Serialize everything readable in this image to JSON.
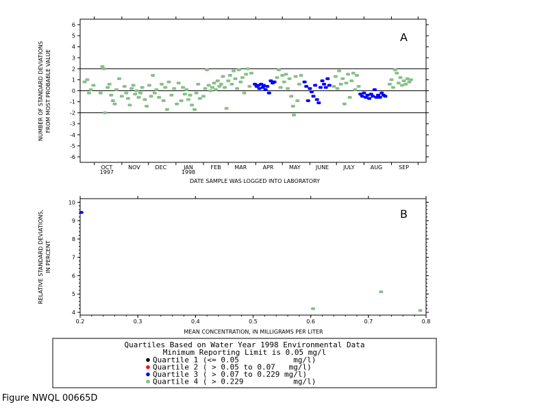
{
  "figure_id": "Figure NWQL 00665D",
  "legend": {
    "title_line1": "Quartiles Based on Water Year 1998 Environmental Data",
    "title_line2": "Minimum Reporting Limit is 0.05 mg/l",
    "items": [
      {
        "label": "Quartile 1 (<= 0.05            mg/l)",
        "color": "#000000"
      },
      {
        "label": "Quartile 2 ( > 0.05 to 0.07   mg/l)",
        "color": "#ff0000"
      },
      {
        "label": "Quartile 3 ( > 0.07 to 0.229 mg/l)",
        "color": "#0000ff"
      },
      {
        "label": "Quartile 4 ( > 0.229           mg/l)",
        "color": "#88c088"
      }
    ]
  },
  "chart_data": [
    {
      "panel": "A",
      "type": "scatter",
      "ylabel_line1": "NUMBER OF STANDARD DEVIATIONS",
      "ylabel_line2": "FROM MOST PROBABLE VALUE",
      "xlabel": "DATE SAMPLE WAS LOGGED INTO LABORATORY",
      "ylim": [
        -6.5,
        6.5
      ],
      "yticks": [
        -6,
        -5,
        -4,
        -3,
        -2,
        -1,
        0,
        1,
        2,
        3,
        4,
        5,
        6
      ],
      "xlim": [
        "1997-09-15",
        "1998-10-10"
      ],
      "month_labels": [
        {
          "label": "OCT",
          "sub": "1997",
          "date": "1997-10-15"
        },
        {
          "label": "NOV",
          "sub": "",
          "date": "1997-11-15"
        },
        {
          "label": "DEC",
          "sub": "",
          "date": "1997-12-15"
        },
        {
          "label": "JAN",
          "sub": "1998",
          "date": "1998-01-15"
        },
        {
          "label": "FEB",
          "sub": "",
          "date": "1998-02-15"
        },
        {
          "label": "MAR",
          "sub": "",
          "date": "1998-03-15"
        },
        {
          "label": "APR",
          "sub": "",
          "date": "1998-04-15"
        },
        {
          "label": "MAY",
          "sub": "",
          "date": "1998-05-15"
        },
        {
          "label": "JUNE",
          "sub": "",
          "date": "1998-06-15"
        },
        {
          "label": "JULY",
          "sub": "",
          "date": "1998-07-15"
        },
        {
          "label": "AUG",
          "sub": "",
          "date": "1998-08-15"
        },
        {
          "label": "SEP",
          "sub": "",
          "date": "1998-09-15"
        }
      ],
      "reference_lines": [
        2,
        0,
        -2
      ],
      "series": [
        {
          "color": "#88c088",
          "points": [
            [
              "1997-09-20",
              0.8
            ],
            [
              "1997-09-23",
              1.0
            ],
            [
              "1997-09-25",
              -0.2
            ],
            [
              "1997-09-27",
              0.1
            ],
            [
              "1997-09-30",
              0.5
            ],
            [
              "1997-10-08",
              -0.2
            ],
            [
              "1997-10-10",
              2.2
            ],
            [
              "1997-10-12",
              2.0
            ],
            [
              "1997-10-13",
              -2.0
            ],
            [
              "1997-10-16",
              0.3
            ],
            [
              "1997-10-18",
              0.6
            ],
            [
              "1997-10-20",
              -0.4
            ],
            [
              "1997-10-22",
              -0.9
            ],
            [
              "1997-10-24",
              -1.2
            ],
            [
              "1997-10-26",
              0.1
            ],
            [
              "1997-10-29",
              1.1
            ],
            [
              "1997-11-01",
              -0.5
            ],
            [
              "1997-11-04",
              0.4
            ],
            [
              "1997-11-06",
              -0.2
            ],
            [
              "1997-11-08",
              -0.7
            ],
            [
              "1997-11-10",
              -1.3
            ],
            [
              "1997-11-12",
              0.2
            ],
            [
              "1997-11-14",
              0.5
            ],
            [
              "1997-11-16",
              -0.3
            ],
            [
              "1997-11-18",
              0.0
            ],
            [
              "1997-11-20",
              -0.6
            ],
            [
              "1997-11-22",
              -0.2
            ],
            [
              "1997-11-24",
              0.3
            ],
            [
              "1997-11-27",
              -0.8
            ],
            [
              "1997-11-29",
              -1.4
            ],
            [
              "1997-12-02",
              0.5
            ],
            [
              "1997-12-04",
              -0.5
            ],
            [
              "1997-12-06",
              1.4
            ],
            [
              "1997-12-08",
              -0.2
            ],
            [
              "1997-12-10",
              0.1
            ],
            [
              "1997-12-13",
              -0.6
            ],
            [
              "1997-12-16",
              0.6
            ],
            [
              "1997-12-18",
              -0.9
            ],
            [
              "1997-12-20",
              0.3
            ],
            [
              "1997-12-22",
              -1.7
            ],
            [
              "1997-12-24",
              0.8
            ],
            [
              "1997-12-27",
              -0.4
            ],
            [
              "1997-12-30",
              0.2
            ],
            [
              "1998-01-02",
              -1.2
            ],
            [
              "1998-01-04",
              0.7
            ],
            [
              "1998-01-07",
              -0.9
            ],
            [
              "1998-01-09",
              0.3
            ],
            [
              "1998-01-11",
              -0.3
            ],
            [
              "1998-01-13",
              0.1
            ],
            [
              "1998-01-15",
              -0.8
            ],
            [
              "1998-01-17",
              -0.4
            ],
            [
              "1998-01-19",
              -1.3
            ],
            [
              "1998-01-22",
              -1.7
            ],
            [
              "1998-01-24",
              -0.2
            ],
            [
              "1998-01-26",
              0.6
            ],
            [
              "1998-01-28",
              -0.7
            ],
            [
              "1998-02-01",
              -0.5
            ],
            [
              "1998-02-03",
              0.2
            ],
            [
              "1998-02-05",
              1.9
            ],
            [
              "1998-02-07",
              0.5
            ],
            [
              "1998-02-09",
              0.0
            ],
            [
              "1998-02-11",
              0.3
            ],
            [
              "1998-02-13",
              0.7
            ],
            [
              "1998-02-15",
              0.1
            ],
            [
              "1998-02-17",
              0.9
            ],
            [
              "1998-02-19",
              0.4
            ],
            [
              "1998-02-21",
              0.6
            ],
            [
              "1998-02-23",
              1.3
            ],
            [
              "1998-02-25",
              0.3
            ],
            [
              "1998-02-27",
              -1.6
            ],
            [
              "1998-03-01",
              0.9
            ],
            [
              "1998-03-03",
              1.4
            ],
            [
              "1998-03-05",
              0.6
            ],
            [
              "1998-03-07",
              1.8
            ],
            [
              "1998-03-09",
              1.1
            ],
            [
              "1998-03-11",
              0.2
            ],
            [
              "1998-03-13",
              1.9
            ],
            [
              "1998-03-15",
              0.8
            ],
            [
              "1998-03-17",
              1.2
            ],
            [
              "1998-03-19",
              -0.2
            ],
            [
              "1998-03-21",
              1.5
            ],
            [
              "1998-03-23",
              2.0
            ],
            [
              "1998-03-25",
              0.4
            ],
            [
              "1998-03-27",
              1.6
            ],
            [
              "1998-04-25",
              1.2
            ],
            [
              "1998-04-27",
              1.9
            ],
            [
              "1998-04-29",
              0.3
            ],
            [
              "1998-05-01",
              1.4
            ],
            [
              "1998-05-03",
              0.8
            ],
            [
              "1998-05-05",
              1.5
            ],
            [
              "1998-05-07",
              0.2
            ],
            [
              "1998-05-09",
              1.1
            ],
            [
              "1998-05-11",
              -0.5
            ],
            [
              "1998-05-13",
              -1.4
            ],
            [
              "1998-05-14",
              -2.2
            ],
            [
              "1998-05-16",
              1.3
            ],
            [
              "1998-05-18",
              -0.9
            ],
            [
              "1998-05-20",
              0.6
            ],
            [
              "1998-05-22",
              1.4
            ],
            [
              "1998-06-28",
              0.4
            ],
            [
              "1998-06-30",
              1.3
            ],
            [
              "1998-07-02",
              0.2
            ],
            [
              "1998-07-04",
              1.8
            ],
            [
              "1998-07-06",
              0.6
            ],
            [
              "1998-07-08",
              1.1
            ],
            [
              "1998-07-10",
              -1.2
            ],
            [
              "1998-07-12",
              0.7
            ],
            [
              "1998-07-14",
              1.5
            ],
            [
              "1998-07-16",
              -0.6
            ],
            [
              "1998-07-18",
              0.9
            ],
            [
              "1998-07-20",
              1.6
            ],
            [
              "1998-07-22",
              0.1
            ],
            [
              "1998-07-24",
              1.4
            ],
            [
              "1998-07-26",
              0.4
            ],
            [
              "1998-08-30",
              0.6
            ],
            [
              "1998-09-01",
              1.0
            ],
            [
              "1998-09-03",
              0.3
            ],
            [
              "1998-09-05",
              1.9
            ],
            [
              "1998-09-07",
              1.6
            ],
            [
              "1998-09-09",
              0.7
            ],
            [
              "1998-09-11",
              1.2
            ],
            [
              "1998-09-13",
              0.5
            ],
            [
              "1998-09-15",
              0.9
            ],
            [
              "1998-09-17",
              0.6
            ],
            [
              "1998-09-19",
              1.1
            ],
            [
              "1998-09-21",
              0.8
            ],
            [
              "1998-09-23",
              1.0
            ]
          ]
        },
        {
          "color": "#0000ff",
          "points": [
            [
              "1998-03-31",
              0.6
            ],
            [
              "1998-04-02",
              0.4
            ],
            [
              "1998-04-04",
              0.5
            ],
            [
              "1998-04-05",
              0.2
            ],
            [
              "1998-04-07",
              0.6
            ],
            [
              "1998-04-09",
              0.3
            ],
            [
              "1998-04-10",
              0.5
            ],
            [
              "1998-04-12",
              0.1
            ],
            [
              "1998-04-14",
              0.4
            ],
            [
              "1998-04-16",
              -0.2
            ],
            [
              "1998-04-18",
              0.9
            ],
            [
              "1998-04-20",
              0.7
            ],
            [
              "1998-04-22",
              0.8
            ],
            [
              "1998-05-26",
              0.8
            ],
            [
              "1998-05-28",
              0.4
            ],
            [
              "1998-05-30",
              -0.9
            ],
            [
              "1998-06-01",
              0.2
            ],
            [
              "1998-06-03",
              -0.1
            ],
            [
              "1998-06-05",
              -0.5
            ],
            [
              "1998-06-07",
              0.5
            ],
            [
              "1998-06-09",
              -0.8
            ],
            [
              "1998-06-11",
              -1.1
            ],
            [
              "1998-06-13",
              0.3
            ],
            [
              "1998-06-15",
              0.9
            ],
            [
              "1998-06-17",
              0.6
            ],
            [
              "1998-06-19",
              0.3
            ],
            [
              "1998-06-21",
              1.1
            ],
            [
              "1998-06-23",
              0.5
            ],
            [
              "1998-07-28",
              -0.3
            ],
            [
              "1998-07-30",
              -0.5
            ],
            [
              "1998-08-01",
              -0.2
            ],
            [
              "1998-08-03",
              -0.6
            ],
            [
              "1998-08-05",
              -0.4
            ],
            [
              "1998-08-07",
              -0.7
            ],
            [
              "1998-08-09",
              -0.3
            ],
            [
              "1998-08-11",
              -0.5
            ],
            [
              "1998-08-13",
              0.1
            ],
            [
              "1998-08-15",
              -0.6
            ],
            [
              "1998-08-17",
              -0.4
            ],
            [
              "1998-08-19",
              -0.6
            ],
            [
              "1998-08-21",
              -0.2
            ],
            [
              "1998-08-23",
              -0.4
            ],
            [
              "1998-08-25",
              -0.5
            ]
          ]
        }
      ]
    },
    {
      "panel": "B",
      "type": "scatter",
      "ylabel_line1": "RELATIVE STANDARD DEVIATIONS,",
      "ylabel_line2": "IN PERCENT",
      "xlabel": "MEAN CONCENTRATION, IN MILLIGRAMS PER LITER",
      "xlim": [
        0.2,
        0.8
      ],
      "ylim": [
        3.85,
        10.2
      ],
      "xticks": [
        0.2,
        0.3,
        0.4,
        0.5,
        0.6,
        0.7,
        0.8
      ],
      "yticks": [
        4,
        5,
        6,
        7,
        8,
        9,
        10
      ],
      "series": [
        {
          "color": "#0000ff",
          "points": [
            [
              0.202,
              9.45
            ]
          ]
        },
        {
          "color": "#88c088",
          "points": [
            [
              0.604,
              4.2
            ],
            [
              0.722,
              5.12
            ],
            [
              0.79,
              4.1
            ]
          ]
        }
      ]
    }
  ]
}
